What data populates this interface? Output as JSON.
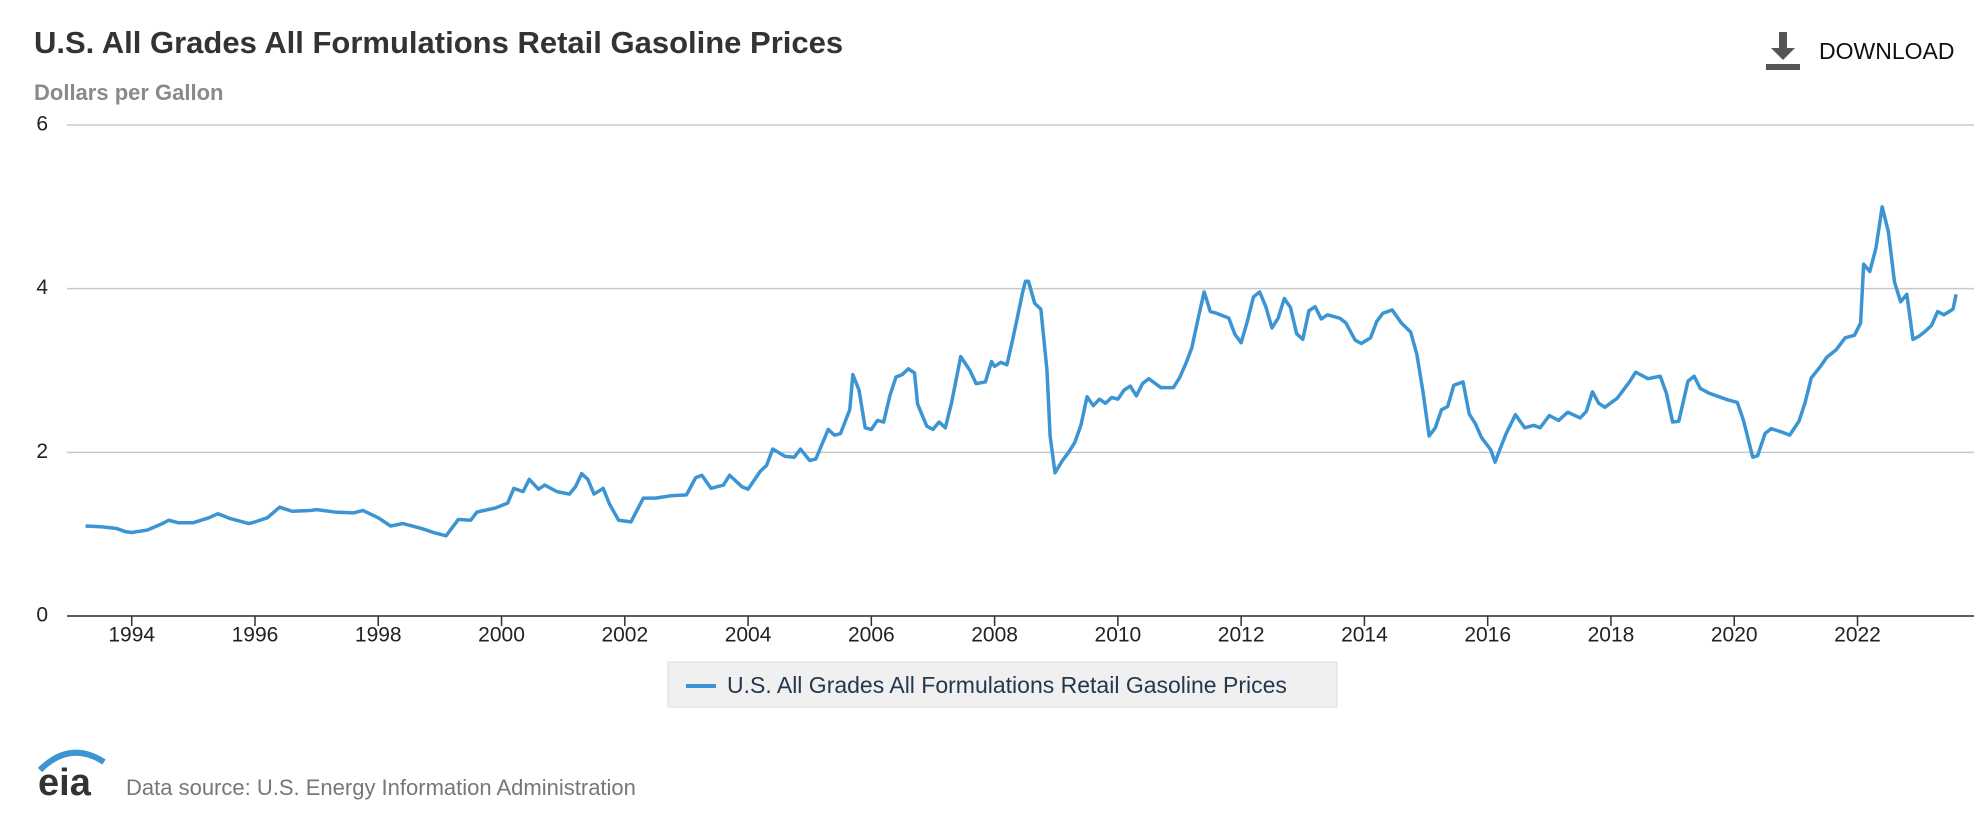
{
  "chart_data": {
    "type": "line",
    "title": "U.S. All Grades All Formulations Retail Gasoline Prices",
    "subtitle": "Dollars per Gallon",
    "x": [
      1993.25,
      1993.5,
      1993.75,
      1993.9,
      1994.0,
      1994.25,
      1994.5,
      1994.6,
      1994.75,
      1995.0,
      1995.25,
      1995.4,
      1995.6,
      1995.9,
      1996.0,
      1996.2,
      1996.4,
      1996.6,
      1996.9,
      1997.0,
      1997.3,
      1997.6,
      1997.75,
      1998.0,
      1998.2,
      1998.4,
      1998.7,
      1998.9,
      1999.1,
      1999.3,
      1999.5,
      1999.6,
      1999.9,
      2000.1,
      2000.2,
      2000.35,
      2000.45,
      2000.6,
      2000.7,
      2000.9,
      2001.1,
      2001.2,
      2001.3,
      2001.4,
      2001.5,
      2001.65,
      2001.75,
      2001.9,
      2002.1,
      2002.3,
      2002.5,
      2002.75,
      2003.0,
      2003.15,
      2003.25,
      2003.4,
      2003.6,
      2003.7,
      2003.9,
      2004.0,
      2004.2,
      2004.3,
      2004.4,
      2004.6,
      2004.75,
      2004.85,
      2005.0,
      2005.1,
      2005.3,
      2005.4,
      2005.5,
      2005.65,
      2005.7,
      2005.8,
      2005.9,
      2006.0,
      2006.1,
      2006.2,
      2006.3,
      2006.4,
      2006.5,
      2006.6,
      2006.7,
      2006.75,
      2006.9,
      2007.0,
      2007.1,
      2007.2,
      2007.3,
      2007.45,
      2007.6,
      2007.7,
      2007.85,
      2007.95,
      2008.0,
      2008.1,
      2008.2,
      2008.3,
      2008.45,
      2008.5,
      2008.55,
      2008.65,
      2008.75,
      2008.85,
      2008.9,
      2008.98,
      2009.1,
      2009.2,
      2009.3,
      2009.4,
      2009.5,
      2009.6,
      2009.7,
      2009.8,
      2009.9,
      2010.0,
      2010.1,
      2010.2,
      2010.3,
      2010.4,
      2010.5,
      2010.7,
      2010.9,
      2011.0,
      2011.1,
      2011.2,
      2011.3,
      2011.4,
      2011.5,
      2011.6,
      2011.8,
      2011.9,
      2012.0,
      2012.1,
      2012.2,
      2012.3,
      2012.4,
      2012.5,
      2012.6,
      2012.7,
      2012.8,
      2012.9,
      2013.0,
      2013.1,
      2013.2,
      2013.3,
      2013.4,
      2013.6,
      2013.7,
      2013.85,
      2013.95,
      2014.1,
      2014.2,
      2014.3,
      2014.45,
      2014.6,
      2014.75,
      2014.85,
      2014.95,
      2015.05,
      2015.15,
      2015.25,
      2015.35,
      2015.45,
      2015.6,
      2015.7,
      2015.8,
      2015.9,
      2016.05,
      2016.12,
      2016.2,
      2016.3,
      2016.45,
      2016.6,
      2016.75,
      2016.85,
      2017.0,
      2017.15,
      2017.3,
      2017.5,
      2017.6,
      2017.7,
      2017.8,
      2017.9,
      2018.1,
      2018.3,
      2018.4,
      2018.6,
      2018.8,
      2018.9,
      2019.0,
      2019.1,
      2019.25,
      2019.35,
      2019.45,
      2019.6,
      2019.75,
      2019.9,
      2020.05,
      2020.15,
      2020.3,
      2020.38,
      2020.5,
      2020.6,
      2020.8,
      2020.9,
      2021.05,
      2021.15,
      2021.25,
      2021.4,
      2021.5,
      2021.65,
      2021.8,
      2021.95,
      2022.05,
      2022.1,
      2022.2,
      2022.3,
      2022.4,
      2022.5,
      2022.6,
      2022.7,
      2022.8,
      2022.9,
      2023.0,
      2023.1,
      2023.2,
      2023.3,
      2023.4,
      2023.55,
      2023.6
    ],
    "series": [
      {
        "name": "U.S. All Grades All Formulations Retail Gasoline Prices",
        "color": "#3b95d3",
        "values": [
          1.1,
          1.09,
          1.07,
          1.03,
          1.02,
          1.05,
          1.13,
          1.17,
          1.14,
          1.14,
          1.2,
          1.25,
          1.19,
          1.13,
          1.15,
          1.2,
          1.33,
          1.28,
          1.29,
          1.3,
          1.27,
          1.26,
          1.29,
          1.2,
          1.1,
          1.13,
          1.07,
          1.02,
          0.98,
          1.18,
          1.17,
          1.27,
          1.32,
          1.38,
          1.56,
          1.52,
          1.67,
          1.55,
          1.6,
          1.52,
          1.49,
          1.58,
          1.74,
          1.67,
          1.49,
          1.56,
          1.37,
          1.17,
          1.15,
          1.44,
          1.44,
          1.47,
          1.48,
          1.69,
          1.72,
          1.56,
          1.6,
          1.72,
          1.58,
          1.55,
          1.77,
          1.84,
          2.04,
          1.95,
          1.94,
          2.04,
          1.9,
          1.92,
          2.28,
          2.21,
          2.23,
          2.52,
          2.95,
          2.76,
          2.3,
          2.28,
          2.39,
          2.37,
          2.69,
          2.92,
          2.95,
          3.02,
          2.97,
          2.59,
          2.32,
          2.28,
          2.37,
          2.3,
          2.6,
          3.17,
          3.0,
          2.84,
          2.86,
          3.11,
          3.05,
          3.1,
          3.07,
          3.4,
          3.94,
          4.09,
          4.09,
          3.82,
          3.75,
          3.0,
          2.2,
          1.75,
          1.9,
          2.0,
          2.12,
          2.33,
          2.68,
          2.57,
          2.65,
          2.6,
          2.67,
          2.65,
          2.76,
          2.81,
          2.69,
          2.84,
          2.9,
          2.79,
          2.79,
          2.91,
          3.08,
          3.28,
          3.63,
          3.96,
          3.72,
          3.7,
          3.64,
          3.44,
          3.34,
          3.6,
          3.9,
          3.96,
          3.78,
          3.52,
          3.64,
          3.88,
          3.77,
          3.45,
          3.38,
          3.73,
          3.78,
          3.63,
          3.68,
          3.64,
          3.58,
          3.37,
          3.33,
          3.4,
          3.6,
          3.7,
          3.74,
          3.58,
          3.47,
          3.2,
          2.74,
          2.2,
          2.3,
          2.52,
          2.56,
          2.82,
          2.86,
          2.47,
          2.35,
          2.18,
          2.03,
          1.88,
          2.04,
          2.23,
          2.46,
          2.3,
          2.33,
          2.3,
          2.45,
          2.39,
          2.49,
          2.42,
          2.5,
          2.74,
          2.6,
          2.55,
          2.66,
          2.86,
          2.98,
          2.9,
          2.93,
          2.72,
          2.37,
          2.38,
          2.87,
          2.93,
          2.78,
          2.72,
          2.68,
          2.64,
          2.61,
          2.39,
          1.94,
          1.96,
          2.23,
          2.29,
          2.24,
          2.21,
          2.38,
          2.61,
          2.91,
          3.05,
          3.16,
          3.25,
          3.4,
          3.43,
          3.58,
          4.3,
          4.21,
          4.5,
          5.0,
          4.7,
          4.08,
          3.84,
          3.93,
          3.38,
          3.42,
          3.48,
          3.55,
          3.72,
          3.68,
          3.75,
          3.93
        ]
      }
    ],
    "xlim": [
      1992.95,
      2023.89
    ],
    "xticks": [
      1994,
      1996,
      1998,
      2000,
      2002,
      2004,
      2006,
      2008,
      2010,
      2012,
      2014,
      2016,
      2018,
      2020,
      2022
    ],
    "ylim": [
      0,
      6
    ],
    "yticks": [
      0,
      2,
      4,
      6
    ],
    "grid": true
  },
  "ui": {
    "download": "DOWNLOAD",
    "logo": "eia",
    "source": "Data source: U.S. Energy Information Administration"
  }
}
